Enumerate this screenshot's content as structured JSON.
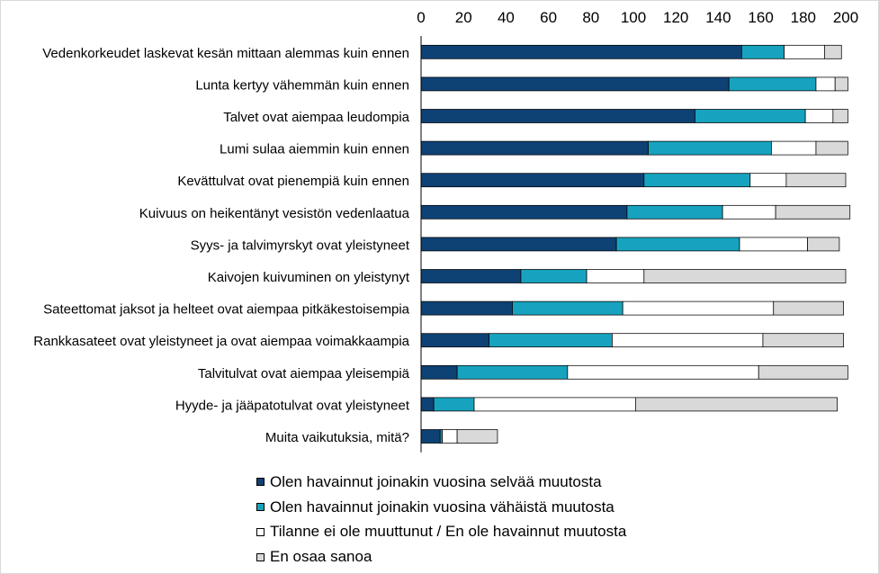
{
  "chart_data": {
    "type": "bar",
    "orientation": "horizontal",
    "stacked": true,
    "title": "",
    "xlabel": "",
    "ylabel": "",
    "xlim": [
      0,
      200
    ],
    "x_ticks": [
      "0",
      "20",
      "40",
      "60",
      "80",
      "100",
      "120",
      "140",
      "160",
      "180",
      "200"
    ],
    "x_axis_position": "top",
    "grid": false,
    "legend_position": "bottom",
    "categories": [
      "Vedenkorkeudet laskevat kesän mittaan alemmas kuin ennen",
      "Lunta kertyy vähemmän kuin ennen",
      "Talvet ovat aiempaa leudompia",
      "Lumi sulaa aiemmin kuin ennen",
      "Kevättulvat ovat pienempiä kuin ennen",
      "Kuivuus on heikentänyt vesistön vedenlaatua",
      "Syys- ja talvimyrskyt ovat yleistyneet",
      "Kaivojen kuivuminen on yleistynyt",
      "Sateettomat jaksot ja helteet ovat aiempaa pitkäkestoisempia",
      "Rankkasateet ovat yleistyneet ja ovat aiempaa voimakkaampia",
      "Talvitulvat ovat aiempaa yleisempiä",
      "Hyyde- ja jääpatotulvat ovat yleistyneet",
      "Muita vaikutuksia, mitä?"
    ],
    "series": [
      {
        "name": "Olen havainnut joinakin vuosina selvää muutosta",
        "color": "#0e4174",
        "values": [
          151,
          145,
          129,
          107,
          105,
          97,
          92,
          47,
          43,
          32,
          17,
          6,
          9
        ]
      },
      {
        "name": "Olen havainnut joinakin vuosina vähäistä muutosta",
        "color": "#17a3bf",
        "values": [
          20,
          41,
          52,
          58,
          50,
          45,
          58,
          31,
          52,
          58,
          52,
          19,
          1
        ]
      },
      {
        "name": "Tilanne ei ole muuttunut / En ole havainnut muutosta",
        "color": "#ffffff",
        "values": [
          19,
          9,
          13,
          21,
          17,
          25,
          32,
          27,
          71,
          71,
          90,
          76,
          7
        ]
      },
      {
        "name": "En osaa sanoa",
        "color": "#d9d9d9",
        "values": [
          8,
          6,
          7,
          15,
          28,
          35,
          15,
          95,
          33,
          38,
          42,
          95,
          19
        ]
      }
    ]
  }
}
